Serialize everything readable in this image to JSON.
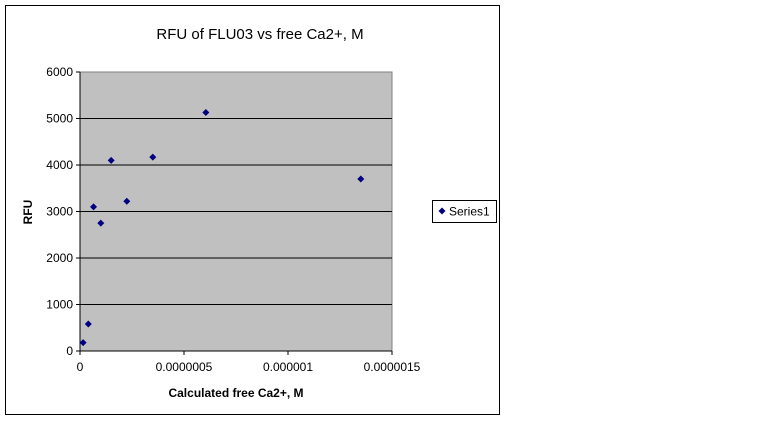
{
  "chart_data": {
    "type": "scatter",
    "title": "RFU of FLU03 vs free Ca2+, M",
    "xlabel": "Calculated free Ca2+, M",
    "ylabel": "RFU",
    "xlim": [
      0,
      1.5e-06
    ],
    "ylim": [
      0,
      6000
    ],
    "x_ticks": [
      0,
      5e-07,
      1e-06,
      1.5e-06
    ],
    "x_tick_labels": [
      "0",
      "0.0000005",
      "0.000001",
      "0.0000015"
    ],
    "y_ticks": [
      0,
      1000,
      2000,
      3000,
      4000,
      5000,
      6000
    ],
    "y_tick_labels": [
      "0",
      "1000",
      "2000",
      "3000",
      "4000",
      "5000",
      "6000"
    ],
    "grid": "horizontal",
    "legend_position": "right",
    "plot_background": "#c0c0c0",
    "marker_color": "#000080",
    "series": [
      {
        "name": "Series1",
        "x": [
          1.5e-08,
          4e-08,
          6.5e-08,
          1e-07,
          1.5e-07,
          2.25e-07,
          3.5e-07,
          6.05e-07,
          1.35e-06
        ],
        "y": [
          180,
          580,
          3100,
          2750,
          4100,
          3220,
          4170,
          5130,
          3700
        ]
      }
    ]
  }
}
